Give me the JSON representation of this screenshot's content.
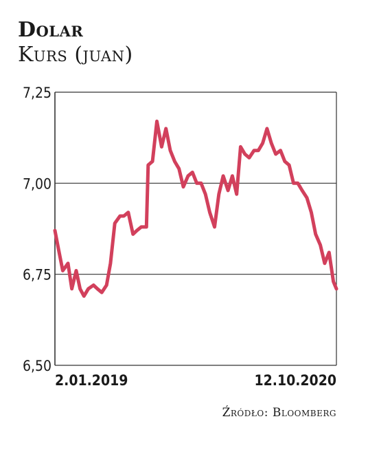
{
  "header": {
    "title": "Dolar",
    "subtitle": "Kurs (juan)"
  },
  "source": "Źródło: Bloomberg",
  "colors": {
    "line": "#d2405c",
    "grid": "#333333",
    "text": "#1a1a1a"
  },
  "chart_data": {
    "type": "line",
    "title": "Dolar",
    "subtitle": "Kurs (juan)",
    "ylim": [
      6.5,
      7.25
    ],
    "yticks": [
      7.25,
      7.0,
      6.75,
      6.5
    ],
    "ytick_labels": [
      "7,25",
      "7,00",
      "6,75",
      "6,50"
    ],
    "xtick_labels": [
      "2.01.2019",
      "12.10.2020"
    ],
    "grid": "horizontal",
    "series": [
      {
        "x": [
          "2019-01-02",
          "2019-01-10",
          "2019-01-20",
          "2019-02-01",
          "2019-02-10",
          "2019-02-20",
          "2019-03-01",
          "2019-03-10",
          "2019-03-20",
          "2019-04-01",
          "2019-04-10",
          "2019-04-20",
          "2019-05-01",
          "2019-05-10",
          "2019-05-20",
          "2019-06-01",
          "2019-06-10",
          "2019-06-20",
          "2019-07-01",
          "2019-07-10",
          "2019-07-20",
          "2019-08-01",
          "2019-08-05",
          "2019-08-15",
          "2019-08-25",
          "2019-09-05",
          "2019-09-15",
          "2019-09-25",
          "2019-10-05",
          "2019-10-15",
          "2019-10-25",
          "2019-11-05",
          "2019-11-15",
          "2019-11-25",
          "2019-12-05",
          "2019-12-15",
          "2019-12-25",
          "2020-01-05",
          "2020-01-15",
          "2020-01-25",
          "2020-02-05",
          "2020-02-15",
          "2020-02-25",
          "2020-03-05",
          "2020-03-15",
          "2020-03-25",
          "2020-04-05",
          "2020-04-15",
          "2020-04-25",
          "2020-05-05",
          "2020-05-15",
          "2020-05-25",
          "2020-06-05",
          "2020-06-15",
          "2020-06-25",
          "2020-07-05",
          "2020-07-15",
          "2020-07-25",
          "2020-08-05",
          "2020-08-15",
          "2020-08-25",
          "2020-09-05",
          "2020-09-15",
          "2020-09-25",
          "2020-10-05",
          "2020-10-12"
        ],
        "y": [
          6.87,
          6.82,
          6.76,
          6.78,
          6.71,
          6.76,
          6.71,
          6.69,
          6.71,
          6.72,
          6.71,
          6.7,
          6.72,
          6.78,
          6.89,
          6.91,
          6.91,
          6.92,
          6.86,
          6.87,
          6.88,
          6.88,
          7.05,
          7.06,
          7.17,
          7.1,
          7.15,
          7.09,
          7.06,
          7.04,
          6.99,
          7.02,
          7.03,
          7.0,
          7.0,
          6.97,
          6.92,
          6.88,
          6.97,
          7.02,
          6.98,
          7.02,
          6.97,
          7.1,
          7.08,
          7.07,
          7.09,
          7.09,
          7.11,
          7.15,
          7.11,
          7.08,
          7.09,
          7.06,
          7.05,
          7.0,
          7.0,
          6.98,
          6.96,
          6.92,
          6.86,
          6.83,
          6.78,
          6.81,
          6.73,
          6.71
        ]
      }
    ]
  }
}
